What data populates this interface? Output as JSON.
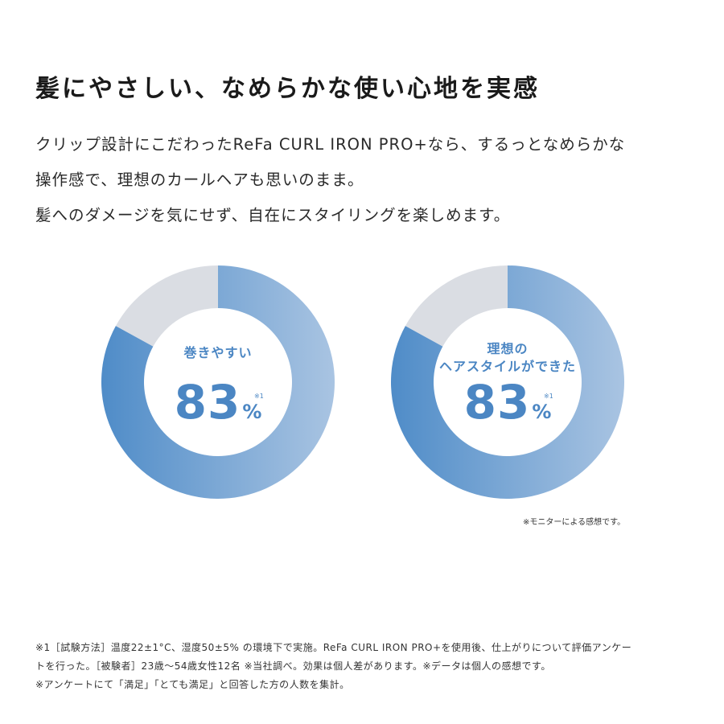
{
  "headline": "髪にやさしい、なめらかな使い心地を実感",
  "body_lines": [
    "クリップ設計にこだわったReFa CURL IRON PRO+なら、するっとなめらかな",
    "操作感で、理想のカールヘアも思いのまま。",
    "髪へのダメージを気にせず、自在にスタイリングを楽しめます。"
  ],
  "colors": {
    "accent": "#4b86c3",
    "ring_gradient_start": "#4f8cc8",
    "ring_gradient_end": "#a9c4e2",
    "remainder": "#dadde3"
  },
  "chart_data": [
    {
      "type": "pie",
      "categories": [
        "巻きやすい",
        ""
      ],
      "values": [
        83,
        17
      ],
      "label_lines": [
        "巻きやすい"
      ],
      "value_text": "83",
      "unit": "%",
      "note": "※1"
    },
    {
      "type": "pie",
      "categories": [
        "理想のヘアスタイルができた",
        ""
      ],
      "values": [
        83,
        17
      ],
      "label_lines": [
        "理想の",
        "ヘアスタイルができた"
      ],
      "value_text": "83",
      "unit": "%",
      "note": "※1"
    }
  ],
  "monitor_note": "※モニターによる感想です。",
  "footnote_lines": [
    "※1［試験方法］温度22±1°C、湿度50±5% の環境下で実施。ReFa CURL IRON PRO+を使用後、仕上がりについて評価アンケー",
    "トを行った。［被験者］23歳〜54歳女性12名 ※当社調べ。効果は個人差があります。※データは個人の感想です。",
    "※アンケートにて「満足」「とても満足」と回答した方の人数を集計。"
  ]
}
